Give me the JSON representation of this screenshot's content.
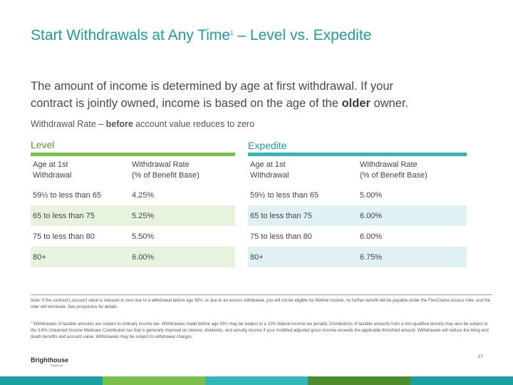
{
  "title": {
    "main": "Start Withdrawals at Any Time",
    "sup": "1",
    "rest": " – Level vs. Expedite"
  },
  "intro": {
    "line1": "The amount of income is determined by age at first withdrawal. If your",
    "line2_pre": "contract is jointly owned, income is based on the age of the ",
    "line2_bold": "older",
    "line2_post": " owner."
  },
  "subhead": {
    "pre": "Withdrawal Rate – ",
    "bold": "before",
    "post": " account value reduces to zero"
  },
  "level": {
    "label": "Level",
    "headers": {
      "age_l1": "Age at 1st",
      "age_l2": "Withdrawal",
      "rate_l1": "Withdrawal Rate",
      "rate_l2": "(% of Benefit Base)"
    },
    "rows": [
      {
        "age": "59½ to less than 65",
        "rate": "4.25%"
      },
      {
        "age": "65 to less than 75",
        "rate": "5.25%"
      },
      {
        "age": "75 to less than 80",
        "rate": "5.50%"
      },
      {
        "age": "80+",
        "rate": "6.00%"
      }
    ]
  },
  "expedite": {
    "label": "Expedite",
    "headers": {
      "age_l1": "Age at 1st",
      "age_l2": "Withdrawal",
      "rate_l1": "Withdrawal Rate",
      "rate_l2": "(% of Benefit Base)"
    },
    "rows": [
      {
        "age": "59½ to less than 65",
        "rate": "5.00%"
      },
      {
        "age": "65 to less than 75",
        "rate": "6.00%"
      },
      {
        "age": "75 to less than 80",
        "rate": "6.00%"
      },
      {
        "age": "80+",
        "rate": "6.75%"
      }
    ]
  },
  "notes": {
    "note1": "Note: If the contract's account value is reduced to zero due to a withdrawal before age 59½, or due to an excess withdrawal, you will not be eligible for lifetime income, no further benefit will be payable under the FlexChoice Access rider, and the rider will terminate. See prospectus for details.",
    "footnote_mark": "1",
    "footnote": " Withdrawals of taxable amounts are subject to ordinary income tax. Withdrawals made before age 59½ may be subject to a 10% federal income tax penalty. Distributions of taxable amounts from a non-qualified annuity may also be subject to the 3.8% Unearned Income Medicare Contribution tax that is generally imposed on interest, dividends, and annuity income if your modified adjusted gross income exceeds the applicable threshold amount. Withdrawals will reduce the living and death benefits and account value. Withdrawals may be subject to withdrawal charges."
  },
  "logo": {
    "name": "Brighthouse",
    "sub": "FINANCIAL"
  },
  "page_number": "17",
  "colors": {
    "title": "#1a9fa3",
    "level_accent": "#7cc04b",
    "expedite_accent": "#33b5b9",
    "footer_band": [
      "#1a9fa3",
      "#7cc04b",
      "#33b5b9",
      "#4c8c2e",
      "#1a9fa3"
    ]
  }
}
